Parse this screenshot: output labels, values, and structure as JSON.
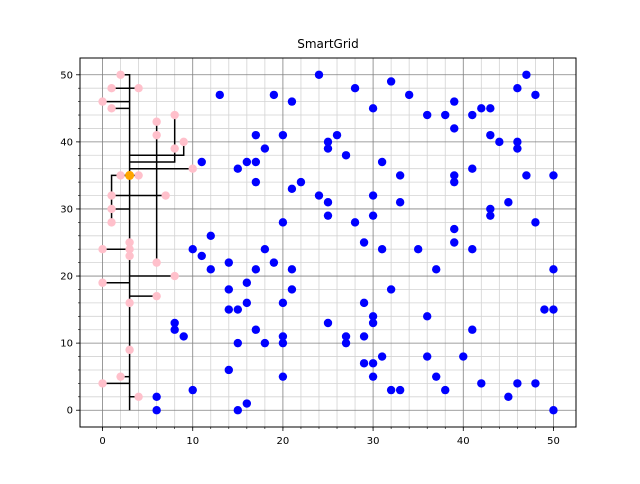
{
  "chart_data": {
    "type": "scatter",
    "title": "SmartGrid",
    "xlabel": "",
    "ylabel": "",
    "xlim": [
      -2.5,
      52.5
    ],
    "ylim": [
      -2.5,
      52.5
    ],
    "xticks": [
      0,
      10,
      20,
      30,
      40,
      50
    ],
    "yticks": [
      0,
      10,
      20,
      30,
      40,
      50
    ],
    "grid": {
      "major": true,
      "minor": true,
      "major_color": "#808080",
      "minor_color": "#d3d3d3"
    },
    "batteries": {
      "color": "#ffa500",
      "points": [
        [
          3,
          35
        ]
      ]
    },
    "connected_houses": {
      "color": "#ffc0cb",
      "points": [
        [
          2,
          50
        ],
        [
          1,
          48
        ],
        [
          4,
          48
        ],
        [
          0,
          46
        ],
        [
          1,
          45
        ],
        [
          6,
          43
        ],
        [
          8,
          44
        ],
        [
          6,
          41
        ],
        [
          9,
          40
        ],
        [
          8,
          39
        ],
        [
          10,
          36
        ],
        [
          2,
          35
        ],
        [
          4,
          35
        ],
        [
          1,
          32
        ],
        [
          7,
          32
        ],
        [
          1,
          30
        ],
        [
          1,
          28
        ],
        [
          3,
          25
        ],
        [
          0,
          24
        ],
        [
          3,
          24
        ],
        [
          3,
          23
        ],
        [
          6,
          22
        ],
        [
          0,
          19
        ],
        [
          8,
          20
        ],
        [
          6,
          17
        ],
        [
          3,
          16
        ],
        [
          3,
          9
        ],
        [
          2,
          5
        ],
        [
          0,
          4
        ],
        [
          4,
          2
        ]
      ]
    },
    "unconnected_houses": {
      "color": "#0000ff",
      "points": [
        [
          13,
          47
        ],
        [
          11,
          37
        ],
        [
          10,
          24
        ],
        [
          11,
          23
        ],
        [
          12,
          26
        ],
        [
          12,
          21
        ],
        [
          8,
          13
        ],
        [
          8,
          12
        ],
        [
          9,
          11
        ],
        [
          6,
          2
        ],
        [
          6,
          0
        ],
        [
          10,
          3
        ],
        [
          14,
          22
        ],
        [
          14,
          18
        ],
        [
          14,
          15
        ],
        [
          15,
          15
        ],
        [
          14,
          6
        ],
        [
          15,
          10
        ],
        [
          15,
          0
        ],
        [
          16,
          1
        ],
        [
          16,
          19
        ],
        [
          16,
          16
        ],
        [
          17,
          21
        ],
        [
          17,
          12
        ],
        [
          18,
          10
        ],
        [
          15,
          36
        ],
        [
          16,
          37
        ],
        [
          17,
          37
        ],
        [
          17,
          41
        ],
        [
          17,
          34
        ],
        [
          18,
          39
        ],
        [
          18,
          24
        ],
        [
          19,
          47
        ],
        [
          19,
          22
        ],
        [
          20,
          41
        ],
        [
          20,
          28
        ],
        [
          20,
          16
        ],
        [
          20,
          11
        ],
        [
          20,
          10
        ],
        [
          20,
          5
        ],
        [
          21,
          46
        ],
        [
          21,
          33
        ],
        [
          21,
          21
        ],
        [
          21,
          18
        ],
        [
          22,
          34
        ],
        [
          24,
          50
        ],
        [
          24,
          32
        ],
        [
          25,
          40
        ],
        [
          25,
          39
        ],
        [
          25,
          31
        ],
        [
          25,
          29
        ],
        [
          25,
          13
        ],
        [
          26,
          41
        ],
        [
          27,
          38
        ],
        [
          27,
          11
        ],
        [
          27,
          10
        ],
        [
          28,
          48
        ],
        [
          28,
          28
        ],
        [
          29,
          25
        ],
        [
          29,
          16
        ],
        [
          29,
          11
        ],
        [
          29,
          7
        ],
        [
          30,
          45
        ],
        [
          30,
          32
        ],
        [
          30,
          29
        ],
        [
          30,
          14
        ],
        [
          30,
          13
        ],
        [
          30,
          7
        ],
        [
          30,
          5
        ],
        [
          31,
          37
        ],
        [
          31,
          24
        ],
        [
          31,
          8
        ],
        [
          32,
          49
        ],
        [
          32,
          18
        ],
        [
          32,
          3
        ],
        [
          33,
          35
        ],
        [
          33,
          31
        ],
        [
          33,
          3
        ],
        [
          34,
          47
        ],
        [
          35,
          24
        ],
        [
          36,
          44
        ],
        [
          36,
          14
        ],
        [
          36,
          8
        ],
        [
          37,
          21
        ],
        [
          37,
          5
        ],
        [
          38,
          44
        ],
        [
          38,
          3
        ],
        [
          39,
          46
        ],
        [
          39,
          42
        ],
        [
          39,
          35
        ],
        [
          39,
          34
        ],
        [
          39,
          27
        ],
        [
          39,
          25
        ],
        [
          40,
          8
        ],
        [
          41,
          44
        ],
        [
          41,
          36
        ],
        [
          41,
          24
        ],
        [
          41,
          12
        ],
        [
          42,
          45
        ],
        [
          42,
          4
        ],
        [
          43,
          45
        ],
        [
          43,
          41
        ],
        [
          43,
          30
        ],
        [
          43,
          29
        ],
        [
          44,
          40
        ],
        [
          45,
          31
        ],
        [
          45,
          2
        ],
        [
          46,
          48
        ],
        [
          46,
          40
        ],
        [
          46,
          39
        ],
        [
          46,
          4
        ],
        [
          47,
          50
        ],
        [
          47,
          35
        ],
        [
          48,
          47
        ],
        [
          48,
          28
        ],
        [
          48,
          4
        ],
        [
          49,
          15
        ],
        [
          50,
          35
        ],
        [
          50,
          21
        ],
        [
          50,
          15
        ],
        [
          50,
          0
        ]
      ]
    },
    "cable_segments": [
      [
        [
          3,
          0
        ],
        [
          3,
          2
        ],
        [
          4,
          2
        ]
      ],
      [
        [
          3,
          2
        ],
        [
          3,
          50
        ],
        [
          2,
          50
        ]
      ],
      [
        [
          3,
          48
        ],
        [
          1,
          48
        ]
      ],
      [
        [
          3,
          48
        ],
        [
          4,
          48
        ]
      ],
      [
        [
          3,
          46
        ],
        [
          0,
          46
        ]
      ],
      [
        [
          3,
          45
        ],
        [
          1,
          45
        ]
      ],
      [
        [
          3,
          35
        ],
        [
          2,
          35
        ]
      ],
      [
        [
          3,
          35
        ],
        [
          4,
          35
        ]
      ],
      [
        [
          3,
          35
        ],
        [
          1,
          35
        ],
        [
          1,
          28
        ]
      ],
      [
        [
          1,
          32
        ],
        [
          7,
          32
        ]
      ],
      [
        [
          1,
          30
        ],
        [
          3,
          30
        ]
      ],
      [
        [
          3,
          36
        ],
        [
          6,
          36
        ],
        [
          6,
          43
        ]
      ],
      [
        [
          3,
          37
        ],
        [
          8,
          37
        ],
        [
          8,
          44
        ]
      ],
      [
        [
          3,
          38
        ],
        [
          9,
          38
        ],
        [
          9,
          40
        ]
      ],
      [
        [
          3,
          36
        ],
        [
          10,
          36
        ]
      ],
      [
        [
          6,
          36
        ],
        [
          6,
          22
        ]
      ],
      [
        [
          3,
          24
        ],
        [
          0,
          24
        ]
      ],
      [
        [
          3,
          20
        ],
        [
          8,
          20
        ]
      ],
      [
        [
          3,
          19
        ],
        [
          0,
          19
        ]
      ],
      [
        [
          3,
          17
        ],
        [
          6,
          17
        ]
      ],
      [
        [
          3,
          5
        ],
        [
          2,
          5
        ]
      ],
      [
        [
          3,
          4
        ],
        [
          0,
          4
        ]
      ]
    ]
  }
}
